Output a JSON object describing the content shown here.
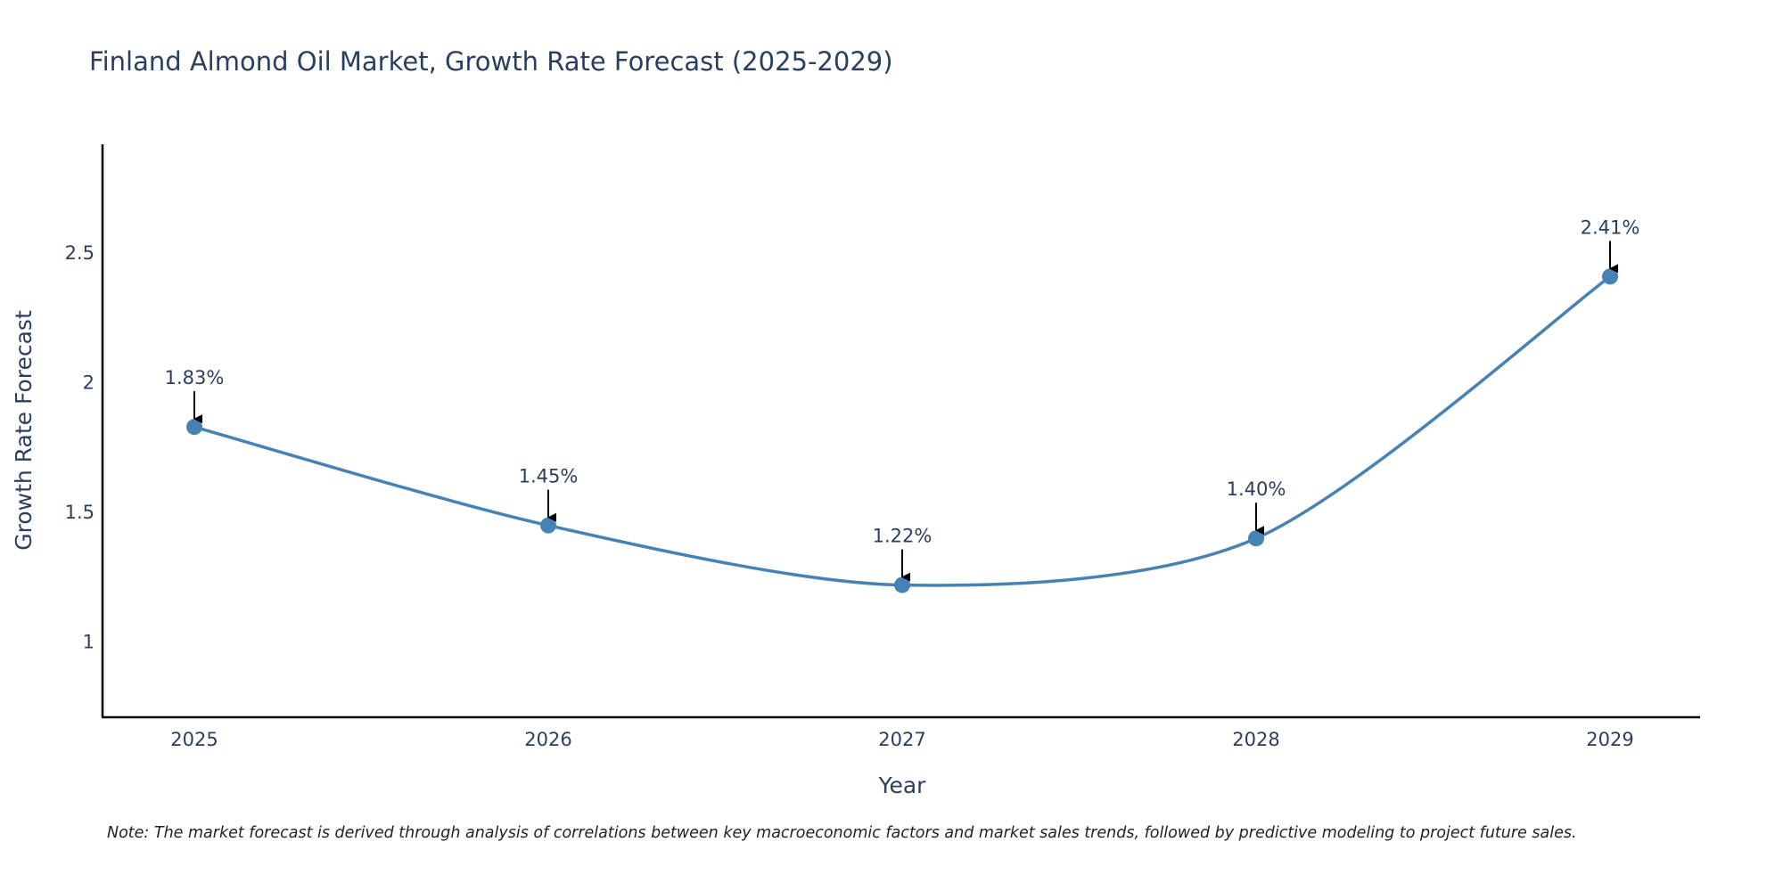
{
  "chart_data": {
    "type": "line",
    "title": "Finland Almond Oil Market, Growth Rate Forecast (2025-2029)",
    "xlabel": "Year",
    "ylabel": "Growth Rate Forecast",
    "categories": [
      "2025",
      "2026",
      "2027",
      "2028",
      "2029"
    ],
    "series": [
      {
        "name": "Growth Rate Forecast",
        "values": [
          1.83,
          1.45,
          1.22,
          1.4,
          2.41
        ],
        "labels": [
          "1.83%",
          "1.45%",
          "1.22%",
          "1.40%",
          "2.41%"
        ],
        "color": "#4682b4"
      }
    ],
    "yticks": [
      1,
      1.5,
      2,
      2.5
    ],
    "ytick_labels": [
      "1",
      "1.5",
      "2",
      "2.5"
    ],
    "ylim": [
      0.71,
      2.92
    ],
    "grid": false,
    "line_shape": "spline",
    "note": "Note: The market forecast is derived through analysis of correlations between key macroeconomic factors and market sales trends, followed by predictive modeling to project future sales."
  }
}
